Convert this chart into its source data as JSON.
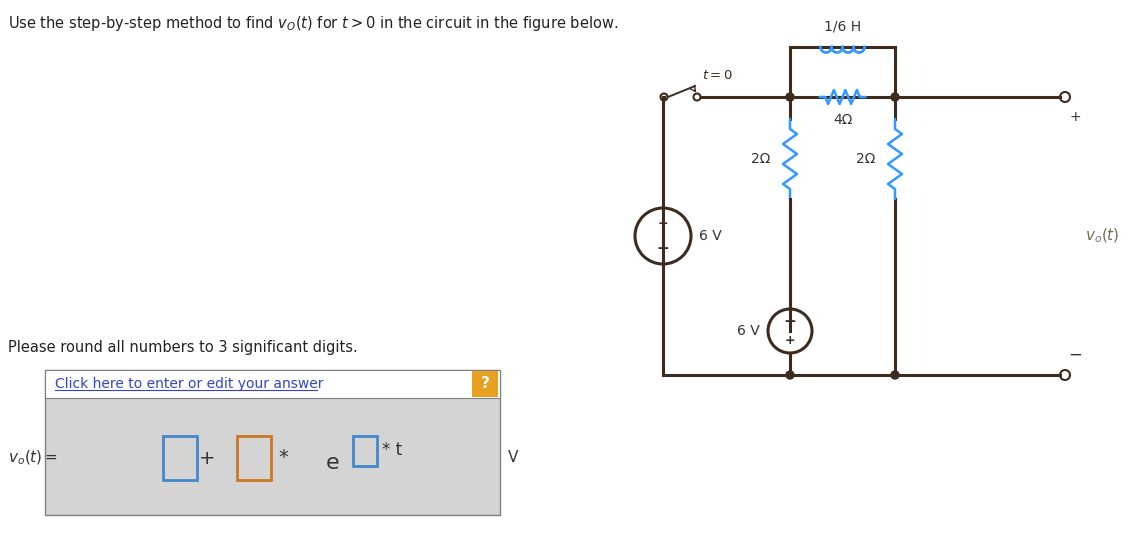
{
  "title_text": "Use the step-by-step method to find $v_O(t)$ for $t > 0$ in the circuit in the figure below.",
  "round_text": "Please round all numbers to 3 significant digits.",
  "click_text": "Click here to enter or edit your answer",
  "vo_label": "$v_o(t) =$",
  "V_label": "V",
  "circuit_wire_color": "#3d2b1f",
  "resistor_color": "#3399ff",
  "inductor_color": "#3399ff",
  "bg_color": "#ffffff",
  "answer_bg": "#d4d4d4",
  "answer_border": "#808080",
  "box_blue": "#4488cc",
  "box_orange": "#cc7722",
  "click_link_color": "#3344cc",
  "question_bg_orange": "#e8a020"
}
